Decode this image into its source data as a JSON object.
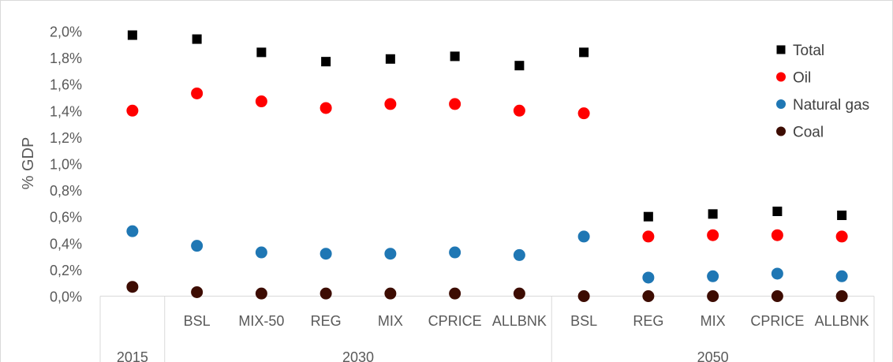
{
  "chart_data": {
    "type": "scatter",
    "title": "",
    "ylabel": "% GDP",
    "ylim": [
      0,
      2.0
    ],
    "yticks": [
      "0,0%",
      "0,2%",
      "0,4%",
      "0,6%",
      "0,8%",
      "1,0%",
      "1,2%",
      "1,4%",
      "1,6%",
      "1,8%",
      "2,0%"
    ],
    "grid": false,
    "legend_position": "top-right",
    "categories": [
      "",
      "BSL",
      "MIX-50",
      "REG",
      "MIX",
      "CPRICE",
      "ALLBNK",
      "BSL",
      "REG",
      "MIX",
      "CPRICE",
      "ALLBNK"
    ],
    "groups": [
      {
        "label": "2015",
        "span": [
          0,
          0
        ]
      },
      {
        "label": "2030",
        "span": [
          1,
          6
        ]
      },
      {
        "label": "2050",
        "span": [
          7,
          11
        ]
      }
    ],
    "series": [
      {
        "name": "Total",
        "marker": "square",
        "color": "#000000",
        "values": [
          1.97,
          1.94,
          1.84,
          1.77,
          1.79,
          1.81,
          1.74,
          1.84,
          0.6,
          0.62,
          0.64,
          0.61
        ]
      },
      {
        "name": "Oil",
        "marker": "circle",
        "color": "#ff0000",
        "values": [
          1.4,
          1.53,
          1.47,
          1.42,
          1.45,
          1.45,
          1.4,
          1.38,
          0.45,
          0.46,
          0.46,
          0.45
        ]
      },
      {
        "name": "Natural gas",
        "marker": "circle",
        "color": "#1f77b4",
        "values": [
          0.49,
          0.38,
          0.33,
          0.32,
          0.32,
          0.33,
          0.31,
          0.45,
          0.14,
          0.15,
          0.17,
          0.15
        ]
      },
      {
        "name": "Coal",
        "marker": "circle",
        "color": "#3d0c02",
        "values": [
          0.07,
          0.03,
          0.02,
          0.02,
          0.02,
          0.02,
          0.02,
          0.0,
          0.0,
          0.0,
          0.0,
          0.0
        ]
      }
    ]
  }
}
